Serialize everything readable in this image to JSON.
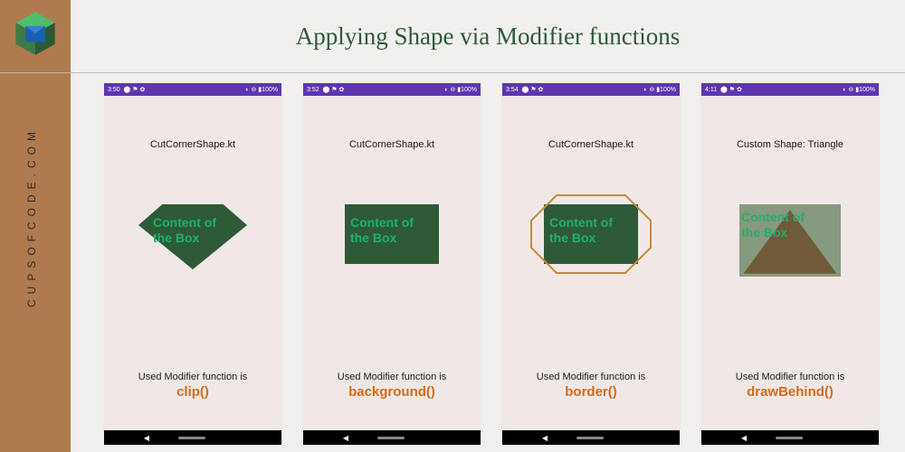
{
  "site": {
    "name": "CUPSOFCODE.COM"
  },
  "header": {
    "title": "Applying Shape via Modifier functions"
  },
  "colors": {
    "sidebar": "#b07a4f",
    "title_text": "#2e5a37",
    "phone_bg": "#f0e8e6",
    "statusbar": "#5e35b1",
    "shape_fill": "#2e5a37",
    "accent_text": "#1fb06f",
    "function_text": "#d56b1c",
    "border_stroke": "#c78a3c",
    "triangle_bg": "#87997f",
    "triangle_fill": "#6f5a3a"
  },
  "phones": [
    {
      "time": "3:50",
      "status_icons": "◐ ⊖ ▮100%",
      "file": "CutCornerShape.kt",
      "content_text": "Content of the Box",
      "caption_line1": "Used Modifier function is",
      "caption_line2": "clip()",
      "shape": "diamond_clip"
    },
    {
      "time": "3:52",
      "status_icons": "◐ ⊖ ▮100%",
      "file": "CutCornerShape.kt",
      "content_text": "Content of the Box",
      "caption_line1": "Used Modifier function is",
      "caption_line2": "background()",
      "shape": "rect_background"
    },
    {
      "time": "3:54",
      "status_icons": "◐ ⊖ ▮100%",
      "file": "CutCornerShape.kt",
      "content_text": "Content of the Box",
      "caption_line1": "Used Modifier function is",
      "caption_line2": "border()",
      "shape": "rect_border"
    },
    {
      "time": "4:11",
      "status_icons": "◐ ⊖ ▮100%",
      "file": "Custom Shape: Triangle",
      "content_text": "Content of the Box",
      "caption_line1": "Used Modifier function is",
      "caption_line2": "drawBehind()",
      "shape": "triangle"
    }
  ]
}
